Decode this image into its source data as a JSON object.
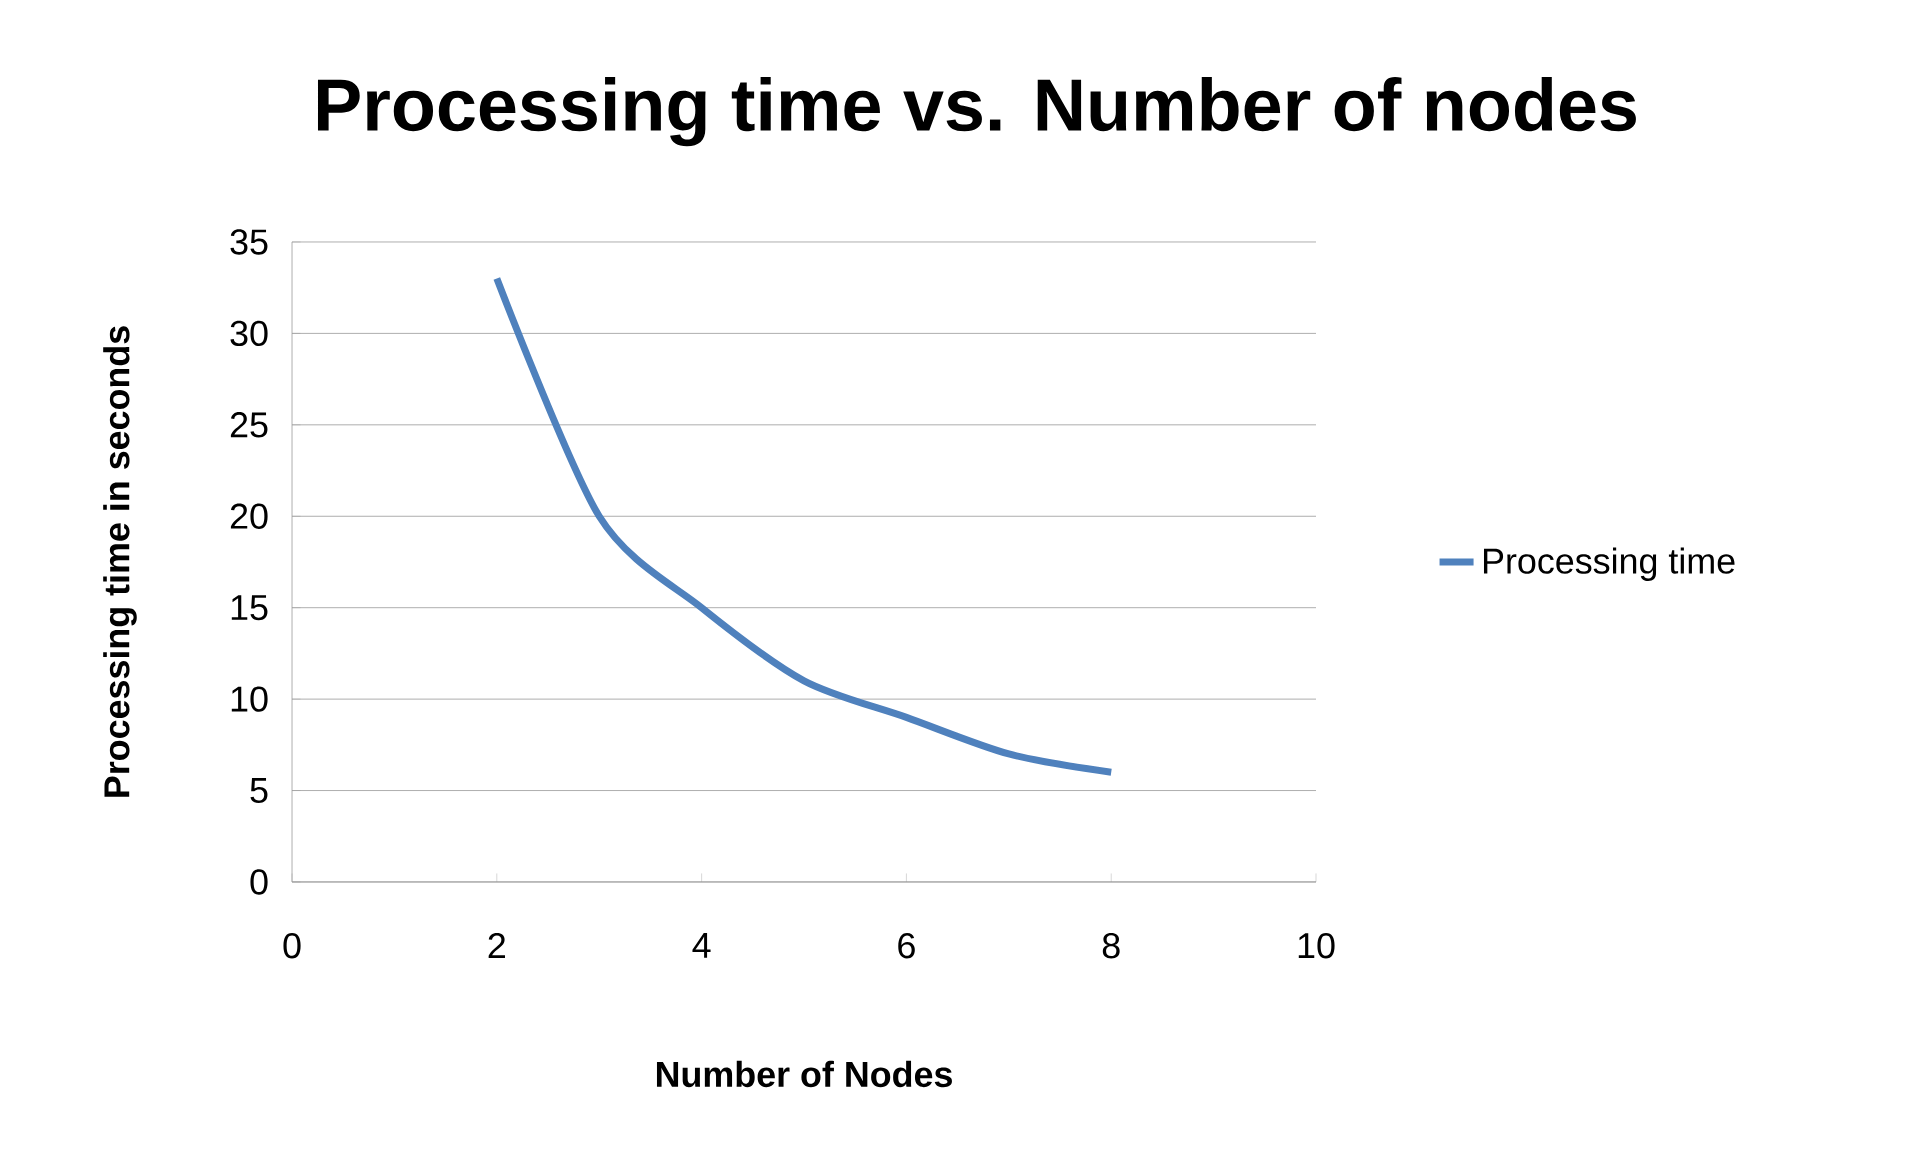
{
  "chart_data": {
    "type": "line",
    "title": "Processing time vs. Number of nodes",
    "xlabel": "Number of Nodes",
    "ylabel": "Processing time in seconds",
    "x": [
      2,
      3,
      4,
      5,
      6,
      7,
      8
    ],
    "series": [
      {
        "name": "Processing time",
        "color": "#4f81bd",
        "values": [
          33,
          20,
          15,
          11,
          9,
          7,
          6
        ]
      }
    ],
    "xlim": [
      0,
      10
    ],
    "xticks": [
      0,
      2,
      4,
      6,
      8,
      10
    ],
    "ylim": [
      0,
      35
    ],
    "yticks": [
      0,
      5,
      10,
      15,
      20,
      25,
      30,
      35
    ],
    "grid": "y",
    "legend": "right",
    "marker": "none",
    "line_style": "solid"
  }
}
